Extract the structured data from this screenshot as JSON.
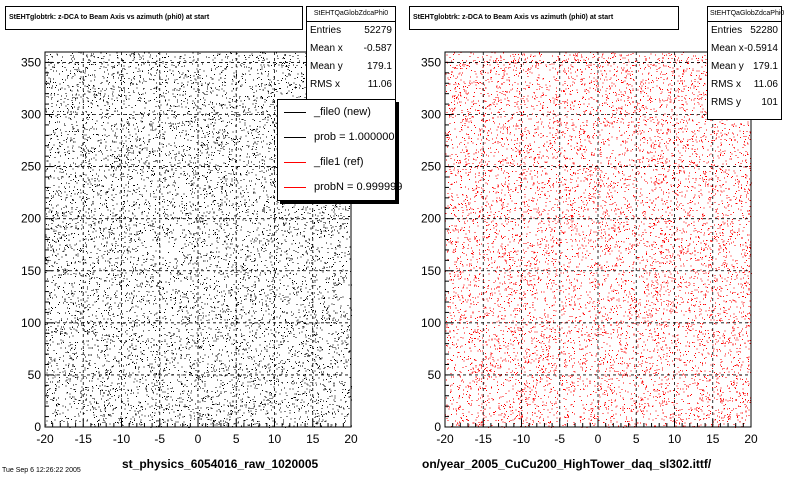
{
  "left": {
    "title": "StEHTglobtrk: z-DCA to Beam Axis vs azimuth (phi0) at start",
    "stats": {
      "name": "StEHTQaGlobZdcaPhi0",
      "rows": [
        {
          "label": "Entries",
          "value": "52279"
        },
        {
          "label": "Mean x",
          "value": "-0.587"
        },
        {
          "label": "Mean y",
          "value": "179.1"
        },
        {
          "label": "RMS x",
          "value": "11.06"
        }
      ]
    },
    "legend": [
      {
        "label": "_file0 (new)",
        "color": "#000000"
      },
      {
        "label": "prob = 1.000000",
        "color": "#000000"
      },
      {
        "label": "_file1 (ref)",
        "color": "#ff0000"
      },
      {
        "label": "probN = 0.999999",
        "color": "#ff0000"
      }
    ],
    "footer": "st_physics_6054016_raw_1020005",
    "corner": "Tue Sep 6 12:26:22 2005"
  },
  "right": {
    "title": "StEHTglobtrk: z-DCA to Beam Axis vs azimuth (phi0) at start",
    "stats": {
      "name": "StEHTQaGlobZdcaPhi0",
      "rows": [
        {
          "label": "Entries",
          "value": "52280"
        },
        {
          "label": "Mean x",
          "value": "-0.5914"
        },
        {
          "label": "Mean y",
          "value": "179.1"
        },
        {
          "label": "RMS x",
          "value": "11.06"
        },
        {
          "label": "RMS y",
          "value": "101"
        }
      ]
    },
    "footer": "on/year_2005_CuCu200_HighTower_daq_sl302.ittf/"
  },
  "chart_data": [
    {
      "type": "scatter",
      "series": [
        {
          "name": "_file0 (new)",
          "color": "#000000",
          "n_points": 52279
        }
      ],
      "xlim": [
        -20,
        20
      ],
      "ylim": [
        0,
        360
      ],
      "xticks": [
        "-20",
        "-15",
        "-10",
        "-5",
        "0",
        "5",
        "10",
        "15",
        "20"
      ],
      "yticks": [
        "0",
        "50",
        "100",
        "150",
        "200",
        "250",
        "300",
        "350"
      ],
      "grid": true,
      "legend_position": "top-right"
    },
    {
      "type": "scatter",
      "series": [
        {
          "name": "_file1 (ref)",
          "color": "#ff0000",
          "n_points": 52280
        }
      ],
      "xlim": [
        -20,
        20
      ],
      "ylim": [
        0,
        360
      ],
      "xticks": [
        "-20",
        "-15",
        "-10",
        "-5",
        "0",
        "5",
        "10",
        "15",
        "20"
      ],
      "yticks": [
        "0",
        "50",
        "100",
        "150",
        "200",
        "250",
        "300",
        "350"
      ],
      "grid": true
    }
  ]
}
